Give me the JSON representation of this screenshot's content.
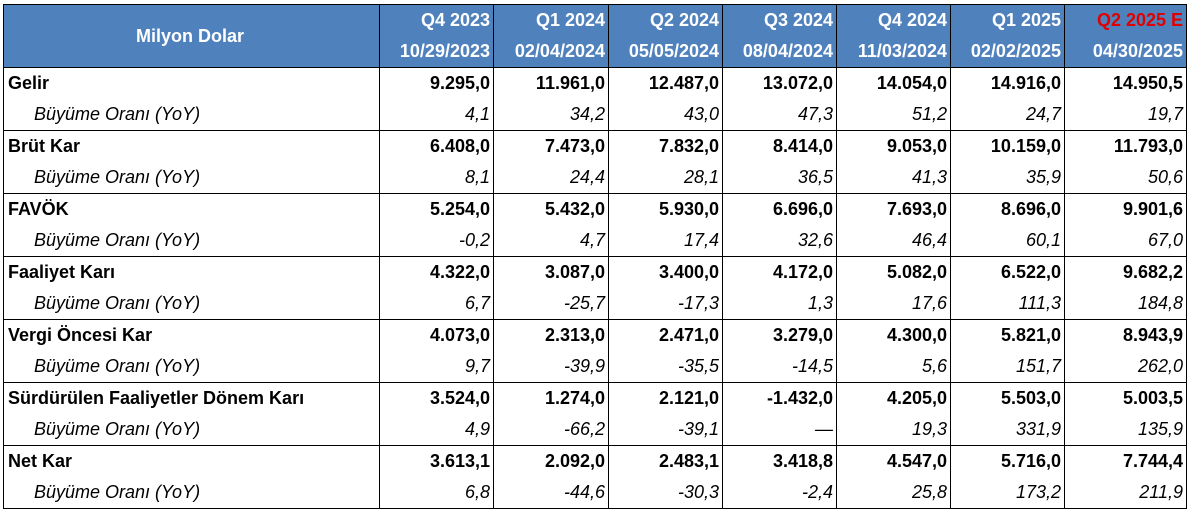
{
  "header": {
    "title": "Milyon Dolar",
    "columns": [
      {
        "quarter": "Q4 2023",
        "date": "10/29/2023"
      },
      {
        "quarter": "Q1 2024",
        "date": "02/04/2024"
      },
      {
        "quarter": "Q2 2024",
        "date": "05/05/2024"
      },
      {
        "quarter": "Q3 2024",
        "date": "08/04/2024"
      },
      {
        "quarter": "Q4 2024",
        "date": "11/03/2024"
      },
      {
        "quarter": "Q1 2025",
        "date": "02/02/2025"
      },
      {
        "quarter": "Q2 2025 E",
        "date": "04/30/2025"
      }
    ],
    "estimate_color": "#e00000",
    "header_bg": "#4f81bd"
  },
  "rows": [
    {
      "label": "Gelir",
      "values": [
        "9.295,0",
        "11.961,0",
        "12.487,0",
        "13.072,0",
        "14.054,0",
        "14.916,0",
        "14.950,5"
      ],
      "growth_label": "Büyüme Oranı (YoY)",
      "growth": [
        "4,1",
        "34,2",
        "43,0",
        "47,3",
        "51,2",
        "24,7",
        "19,7"
      ]
    },
    {
      "label": "Brüt Kar",
      "values": [
        "6.408,0",
        "7.473,0",
        "7.832,0",
        "8.414,0",
        "9.053,0",
        "10.159,0",
        "11.793,0"
      ],
      "growth_label": "Büyüme Oranı (YoY)",
      "growth": [
        "8,1",
        "24,4",
        "28,1",
        "36,5",
        "41,3",
        "35,9",
        "50,6"
      ]
    },
    {
      "label": "FAVÖK",
      "values": [
        "5.254,0",
        "5.432,0",
        "5.930,0",
        "6.696,0",
        "7.693,0",
        "8.696,0",
        "9.901,6"
      ],
      "growth_label": "Büyüme Oranı (YoY)",
      "growth": [
        "-0,2",
        "4,7",
        "17,4",
        "32,6",
        "46,4",
        "60,1",
        "67,0"
      ]
    },
    {
      "label": "Faaliyet Karı",
      "values": [
        "4.322,0",
        "3.087,0",
        "3.400,0",
        "4.172,0",
        "5.082,0",
        "6.522,0",
        "9.682,2"
      ],
      "growth_label": "Büyüme Oranı (YoY)",
      "growth": [
        "6,7",
        "-25,7",
        "-17,3",
        "1,3",
        "17,6",
        "111,3",
        "184,8"
      ]
    },
    {
      "label": "Vergi Öncesi Kar",
      "values": [
        "4.073,0",
        "2.313,0",
        "2.471,0",
        "3.279,0",
        "4.300,0",
        "5.821,0",
        "8.943,9"
      ],
      "growth_label": "Büyüme Oranı (YoY)",
      "growth": [
        "9,7",
        "-39,9",
        "-35,5",
        "-14,5",
        "5,6",
        "151,7",
        "262,0"
      ]
    },
    {
      "label": "Sürdürülen Faaliyetler Dönem Karı",
      "values": [
        "3.524,0",
        "1.274,0",
        "2.121,0",
        "-1.432,0",
        "4.205,0",
        "5.503,0",
        "5.003,5"
      ],
      "growth_label": "Büyüme Oranı (YoY)",
      "growth": [
        "4,9",
        "-66,2",
        "-39,1",
        "—",
        "19,3",
        "331,9",
        "135,9"
      ]
    },
    {
      "label": "Net Kar",
      "values": [
        "3.613,1",
        "2.092,0",
        "2.483,1",
        "3.418,8",
        "4.547,0",
        "5.716,0",
        "7.744,4"
      ],
      "growth_label": "Büyüme Oranı (YoY)",
      "growth": [
        "6,8",
        "-44,6",
        "-30,3",
        "-2,4",
        "25,8",
        "173,2",
        "211,9"
      ]
    }
  ]
}
